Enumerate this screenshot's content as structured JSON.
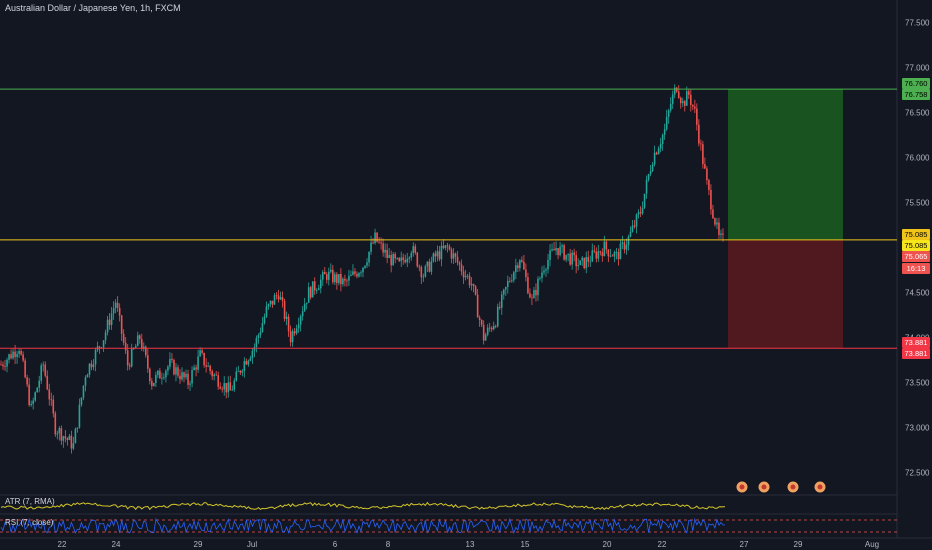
{
  "header": {
    "title": "Australian Dollar / Japanese Yen, 1h, FXCM"
  },
  "indicators": {
    "atr_label": "ATR (7, RMA)",
    "rsi_label": "RSI (7, close)"
  },
  "price_labels": {
    "target_top": "76.760",
    "target_bottom": "76.758",
    "entry_top": "75.085",
    "entry_current": "75.085",
    "entry_red": "75.065",
    "countdown": "16:13",
    "stop_top": "73.881",
    "stop_bottom": "73.881"
  },
  "colors": {
    "background": "#131722",
    "up_candle": "#26a69a",
    "down_candle": "#ef5350",
    "target_line": "#4caf50",
    "entry_line": "#f0c419",
    "stop_line": "#f23645",
    "profit_zone": "#1b5e20",
    "loss_zone": "#5c1a1f",
    "atr_line": "#d4c62a",
    "rsi_line": "#2962ff"
  },
  "chart_data": {
    "type": "candlestick",
    "symbol": "AUD/JPY",
    "timeframe": "1h",
    "ylim": [
      72.25,
      77.75
    ],
    "y_ticks": [
      72.5,
      73.0,
      73.5,
      74.0,
      74.5,
      75.0,
      75.5,
      76.0,
      76.5,
      77.0,
      77.5
    ],
    "y_tick_labels": [
      "72.500",
      "73.000",
      "73.500",
      "74.000",
      "74.500",
      "75.000",
      "75.500",
      "76.000",
      "76.500",
      "77.000",
      "77.500"
    ],
    "x_tick_labels": [
      "22",
      "24",
      "29",
      "Jul",
      "6",
      "8",
      "13",
      "15",
      "20",
      "22",
      "27",
      "29",
      "Aug"
    ],
    "price_path": [
      [
        0,
        73.7
      ],
      [
        3,
        73.9
      ],
      [
        5,
        73.2
      ],
      [
        7,
        73.7
      ],
      [
        9,
        73.0
      ],
      [
        12,
        72.8
      ],
      [
        14,
        73.6
      ],
      [
        17,
        74.0
      ],
      [
        19,
        74.4
      ],
      [
        21,
        73.7
      ],
      [
        23,
        74.0
      ],
      [
        25,
        73.5
      ],
      [
        28,
        73.7
      ],
      [
        31,
        73.5
      ],
      [
        33,
        73.8
      ],
      [
        35,
        73.6
      ],
      [
        38,
        73.4
      ],
      [
        40,
        73.7
      ],
      [
        42,
        73.9
      ],
      [
        44,
        74.3
      ],
      [
        46,
        74.5
      ],
      [
        48,
        74.0
      ],
      [
        51,
        74.5
      ],
      [
        54,
        74.7
      ],
      [
        57,
        74.6
      ],
      [
        60,
        74.8
      ],
      [
        62,
        75.1
      ],
      [
        64,
        74.9
      ],
      [
        66,
        74.8
      ],
      [
        68,
        75.0
      ],
      [
        70,
        74.7
      ],
      [
        72,
        74.9
      ],
      [
        74,
        75.0
      ],
      [
        76,
        74.8
      ],
      [
        78,
        74.6
      ],
      [
        79,
        74.3
      ],
      [
        80,
        74.0
      ],
      [
        82,
        74.2
      ],
      [
        84,
        74.6
      ],
      [
        86,
        74.9
      ],
      [
        88,
        74.4
      ],
      [
        90,
        74.8
      ],
      [
        92,
        75.0
      ],
      [
        94,
        74.9
      ],
      [
        96,
        74.8
      ],
      [
        98,
        74.9
      ],
      [
        100,
        75.0
      ],
      [
        102,
        74.9
      ],
      [
        104,
        75.1
      ],
      [
        106,
        75.4
      ],
      [
        108,
        76.0
      ],
      [
        110,
        76.3
      ],
      [
        111,
        76.6
      ],
      [
        112,
        76.8
      ],
      [
        113,
        76.6
      ],
      [
        114,
        76.7
      ],
      [
        115,
        76.5
      ],
      [
        116,
        76.1
      ],
      [
        117,
        75.7
      ],
      [
        118,
        75.4
      ],
      [
        119,
        75.1
      ],
      [
        120,
        75.06
      ]
    ],
    "position": {
      "target": 76.76,
      "entry": 75.085,
      "stop": 73.881
    },
    "indicators": [
      "ATR (7, RMA)",
      "RSI (7, close)"
    ]
  }
}
